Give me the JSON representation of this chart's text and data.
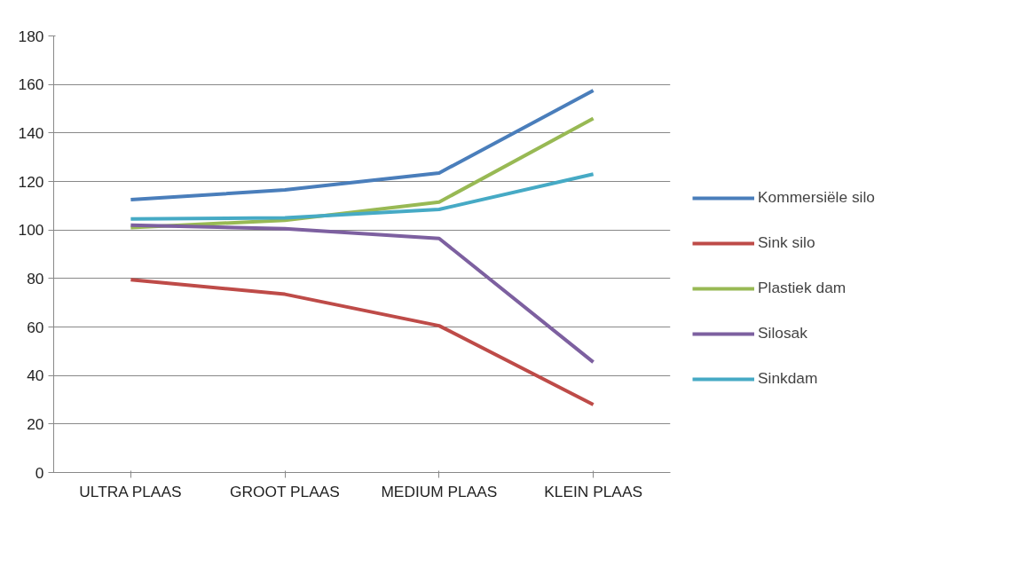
{
  "chart_data": {
    "type": "line",
    "categories": [
      "ULTRA PLAAS",
      "GROOT PLAAS",
      "MEDIUM PLAAS",
      "KLEIN PLAAS"
    ],
    "series": [
      {
        "name": "Kommersiële silo",
        "color": "#4a7ebb",
        "values": [
          112.5,
          116.5,
          123.5,
          157.5
        ]
      },
      {
        "name": "Sink silo",
        "color": "#be4b48",
        "values": [
          79.5,
          73.5,
          60.5,
          28
        ]
      },
      {
        "name": "Plastiek dam",
        "color": "#98b954",
        "values": [
          101,
          104,
          111.5,
          146
        ]
      },
      {
        "name": "Silosak",
        "color": "#7d60a0",
        "values": [
          102,
          100.5,
          96.5,
          45.5
        ]
      },
      {
        "name": "Sinkdam",
        "color": "#46aac5",
        "values": [
          104.5,
          105,
          108.5,
          123
        ]
      }
    ],
    "ylim": [
      0,
      180
    ],
    "yticks": [
      0,
      20,
      40,
      60,
      80,
      100,
      120,
      140,
      160,
      180
    ],
    "grid": "y",
    "legend": "right",
    "line_style": "solid"
  }
}
